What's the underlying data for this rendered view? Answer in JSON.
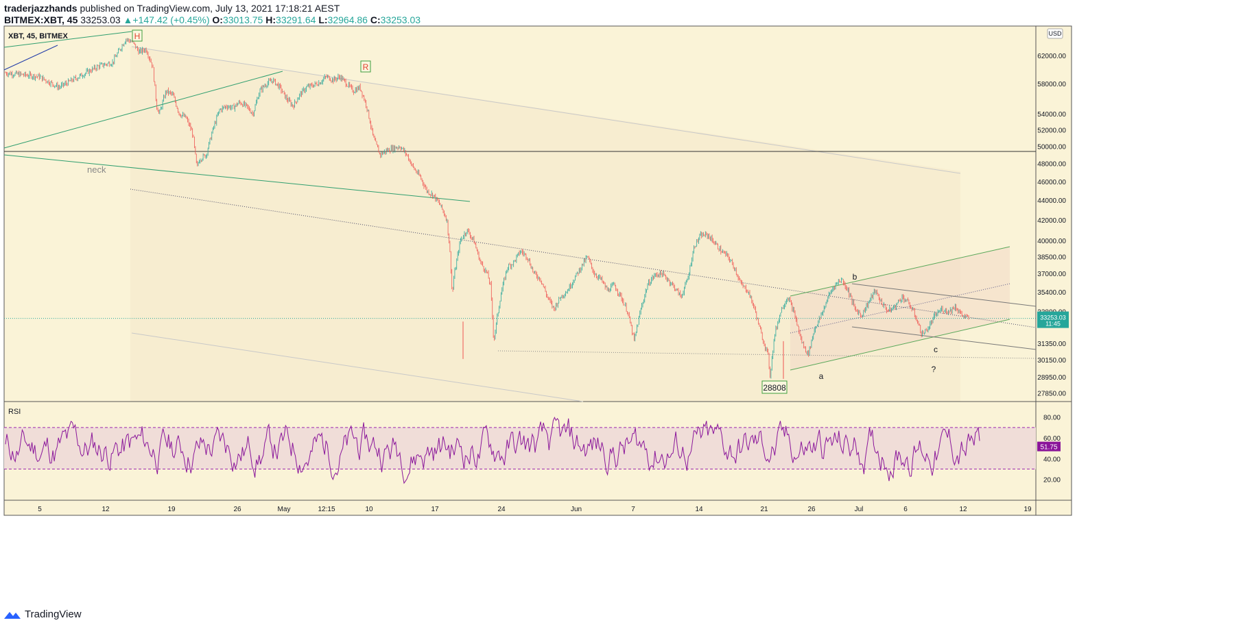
{
  "header": {
    "author": "traderjazzhands",
    "published_text": " published on TradingView.com, July 13, 2021 17:18:21 AEST",
    "symbol": "BITMEX:XBT, 45",
    "last": "33253.03",
    "change": "+147.42 (+0.45%)",
    "o_label": "O:",
    "o_value": "33013.75",
    "h_label": "H:",
    "h_value": "33291.64",
    "l_label": "L:",
    "l_value": "32964.86",
    "c_label": "C:",
    "c_value": "33253.03"
  },
  "footer": {
    "brand": "TradingView"
  },
  "colors": {
    "background": "#faf3d7",
    "up": "#26a69a",
    "down": "#ef5350",
    "trendline": "#2e9e6e",
    "rsi": "#8a159a",
    "rsi_band": "#f0ddd8",
    "price_badge": "#26a69a",
    "rsi_badge": "#8a159a"
  },
  "chart_data": {
    "type": "candlestick",
    "pane_label": "XBT, 45, BITMEX",
    "currency": "USD",
    "y_scale": "log",
    "ylim": [
      27300,
      66500
    ],
    "y_ticks": [
      "62000.00",
      "58000.00",
      "54000.00",
      "52000.00",
      "50000.00",
      "48000.00",
      "46000.00",
      "44000.00",
      "42000.00",
      "40000.00",
      "38500.00",
      "37000.00",
      "35400.00",
      "33800.00",
      "31350.00",
      "30150.00",
      "28950.00",
      "27850.00"
    ],
    "x_ticks": [
      "5",
      "12",
      "19",
      "26",
      "May",
      "12:15",
      "10",
      "17",
      "24",
      "Jun",
      "7",
      "14",
      "21",
      "26",
      "Jul",
      "6",
      "12",
      "19"
    ],
    "price_path": [
      [
        0,
        59500
      ],
      [
        5,
        59000
      ],
      [
        8,
        57500
      ],
      [
        12,
        59500
      ],
      [
        14,
        60500
      ],
      [
        16,
        61000
      ],
      [
        18,
        64500
      ],
      [
        19,
        64000
      ],
      [
        20,
        62500
      ],
      [
        21,
        63000
      ],
      [
        22,
        60500
      ],
      [
        22.6,
        55000
      ],
      [
        23,
        54000
      ],
      [
        24,
        57000
      ],
      [
        25,
        56500
      ],
      [
        26,
        54000
      ],
      [
        27,
        53500
      ],
      [
        28,
        51500
      ],
      [
        28.6,
        47500
      ],
      [
        29,
        48500
      ],
      [
        30,
        49000
      ],
      [
        31,
        52000
      ],
      [
        32,
        54500
      ],
      [
        33,
        55000
      ],
      [
        34,
        54800
      ],
      [
        35,
        55500
      ],
      [
        36,
        55000
      ],
      [
        37,
        54000
      ],
      [
        38,
        57000
      ],
      [
        39,
        58000
      ],
      [
        40,
        58500
      ],
      [
        41,
        57500
      ],
      [
        42,
        56000
      ],
      [
        43,
        55000
      ],
      [
        44,
        56500
      ],
      [
        45,
        57500
      ],
      [
        46,
        57800
      ],
      [
        47,
        58200
      ],
      [
        48,
        59000
      ],
      [
        49,
        58500
      ],
      [
        50,
        59000
      ],
      [
        51,
        58000
      ],
      [
        52,
        57000
      ],
      [
        53,
        57500
      ],
      [
        54,
        55000
      ],
      [
        55,
        51000
      ],
      [
        56,
        49000
      ],
      [
        57,
        49500
      ],
      [
        58,
        49800
      ],
      [
        59,
        50000
      ],
      [
        60,
        49000
      ],
      [
        61,
        47500
      ],
      [
        62,
        46500
      ],
      [
        63,
        45000
      ],
      [
        64,
        44500
      ],
      [
        65,
        43500
      ],
      [
        66,
        42000
      ],
      [
        66.5,
        38500
      ],
      [
        66.8,
        35000
      ],
      [
        67,
        36500
      ],
      [
        68,
        40000
      ],
      [
        69,
        41000
      ],
      [
        70,
        40000
      ],
      [
        71,
        38000
      ],
      [
        72,
        37000
      ],
      [
        72.5,
        36000
      ],
      [
        73,
        31500
      ],
      [
        74,
        35000
      ],
      [
        75,
        37500
      ],
      [
        76,
        38000
      ],
      [
        77,
        39000
      ],
      [
        78,
        38500
      ],
      [
        79,
        37000
      ],
      [
        80,
        36500
      ],
      [
        81,
        35000
      ],
      [
        82,
        34000
      ],
      [
        83,
        35000
      ],
      [
        84,
        35500
      ],
      [
        85,
        36500
      ],
      [
        86,
        37500
      ],
      [
        87,
        38500
      ],
      [
        88,
        37000
      ],
      [
        89,
        36500
      ],
      [
        90,
        35500
      ],
      [
        91,
        36000
      ],
      [
        92,
        35000
      ],
      [
        93,
        33800
      ],
      [
        94,
        31500
      ],
      [
        95,
        34000
      ],
      [
        96,
        36000
      ],
      [
        97,
        36800
      ],
      [
        98,
        37000
      ],
      [
        99,
        36500
      ],
      [
        100,
        35800
      ],
      [
        101,
        35000
      ],
      [
        102,
        36500
      ],
      [
        103,
        39500
      ],
      [
        104,
        40500
      ],
      [
        105,
        40500
      ],
      [
        106,
        39800
      ],
      [
        107,
        39000
      ],
      [
        108,
        38500
      ],
      [
        109,
        37500
      ],
      [
        110,
        36000
      ],
      [
        111,
        35500
      ],
      [
        112,
        34000
      ],
      [
        113,
        32000
      ],
      [
        114,
        30500
      ],
      [
        114.3,
        29000
      ],
      [
        115,
        32000
      ],
      [
        116,
        34000
      ],
      [
        117,
        35000
      ],
      [
        118,
        33500
      ],
      [
        119,
        31500
      ],
      [
        120,
        30500
      ],
      [
        121,
        32500
      ],
      [
        122,
        33500
      ],
      [
        123,
        35000
      ],
      [
        124,
        36000
      ],
      [
        125,
        36500
      ],
      [
        126,
        35500
      ],
      [
        127,
        34000
      ],
      [
        128,
        33500
      ],
      [
        129,
        34500
      ],
      [
        130,
        35500
      ],
      [
        131,
        34500
      ],
      [
        132,
        33800
      ],
      [
        133,
        34200
      ],
      [
        134,
        35000
      ],
      [
        135,
        34500
      ],
      [
        136,
        33500
      ],
      [
        137,
        32000
      ],
      [
        138,
        32500
      ],
      [
        139,
        33500
      ],
      [
        140,
        34000
      ],
      [
        141,
        33800
      ],
      [
        142,
        34200
      ],
      [
        143,
        33500
      ],
      [
        144,
        33253
      ]
    ],
    "annotations": {
      "head": "H",
      "right_shoulder": "R",
      "neckline": "neck",
      "low_box": "28808",
      "wave_a": "a",
      "wave_b": "b",
      "wave_c": "c",
      "question": "?"
    },
    "horizontal_line": 49400,
    "price_badge": {
      "value": "33253.03",
      "countdown": "11:45"
    },
    "rsi": {
      "label": "RSI",
      "value": "51.75",
      "ylim": [
        0,
        95
      ],
      "band": [
        30,
        70
      ],
      "ticks": [
        "80.00",
        "60.00",
        "40.00",
        "20.00"
      ]
    }
  }
}
